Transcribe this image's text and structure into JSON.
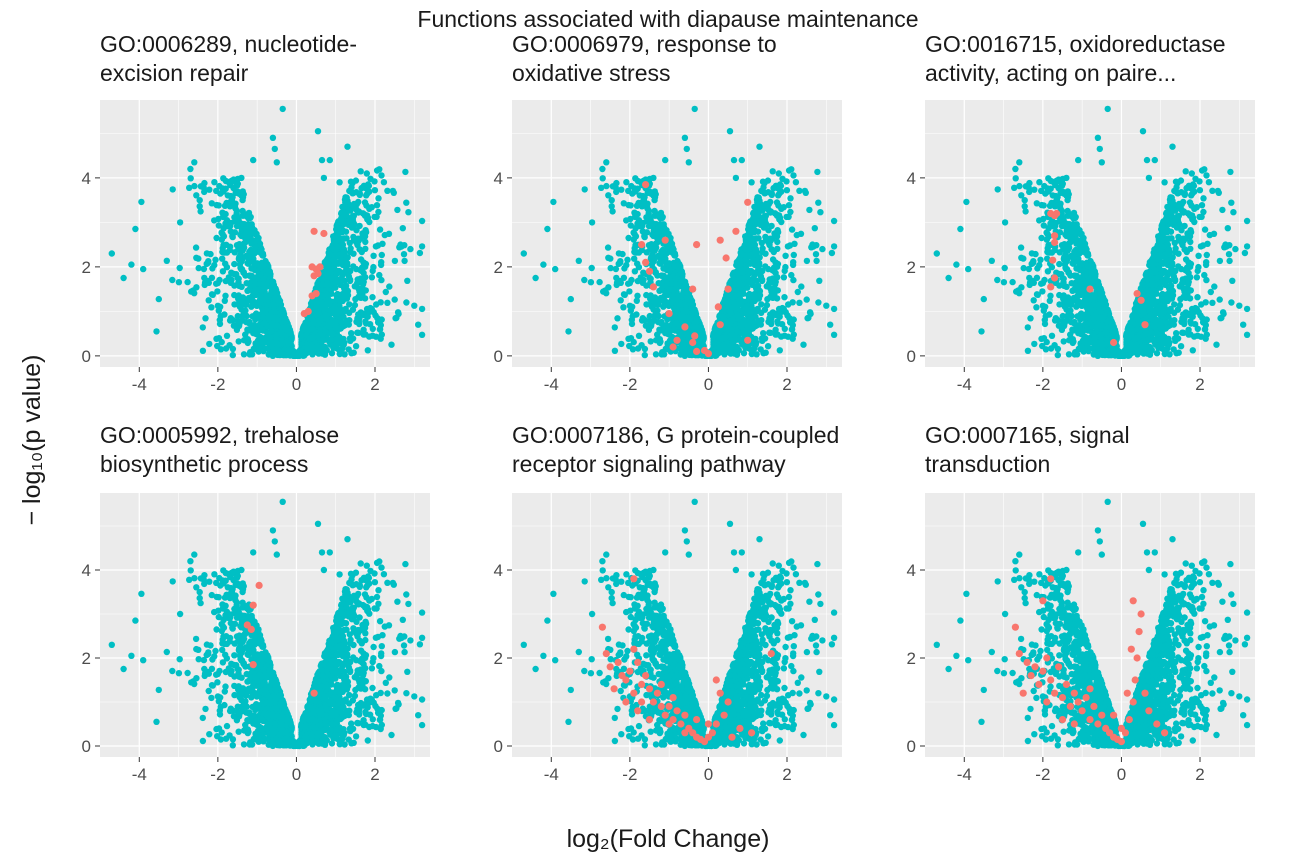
{
  "figure": {
    "title": "Functions associated with diapause maintenance",
    "xlabel": "log₂(Fold Change)",
    "ylabel": "− log₁₀(p value)",
    "colors": {
      "background": "#ebebeb",
      "grid": "#ffffff",
      "all_genes": "#00bfc4",
      "term_genes": "#f8766d"
    }
  },
  "chart_data": [
    {
      "type": "scatter",
      "title": "GO:0006289, nucleotide-\nexcision repair",
      "xlim": [
        -5.0,
        3.4
      ],
      "ylim": [
        -0.25,
        5.75
      ],
      "xticks": [
        -4,
        -2,
        0,
        2
      ],
      "yticks": [
        0,
        2,
        4
      ],
      "series": [
        {
          "color": "#f8766d",
          "points": [
            [
              0.45,
              2.8
            ],
            [
              0.7,
              2.75
            ],
            [
              0.4,
              2.0
            ],
            [
              0.5,
              1.95
            ],
            [
              0.6,
              2.0
            ],
            [
              0.55,
              1.85
            ],
            [
              0.45,
              1.8
            ],
            [
              0.5,
              1.4
            ],
            [
              0.4,
              1.35
            ],
            [
              0.3,
              1.0
            ],
            [
              0.2,
              0.95
            ]
          ]
        }
      ]
    },
    {
      "type": "scatter",
      "title": "GO:0006979, response to\noxidative stress",
      "xlim": [
        -5.0,
        3.4
      ],
      "ylim": [
        -0.25,
        5.75
      ],
      "xticks": [
        -4,
        -2,
        0,
        2
      ],
      "yticks": [
        0,
        2,
        4
      ],
      "series": [
        {
          "color": "#f8766d",
          "points": [
            [
              -1.6,
              3.85
            ],
            [
              1.0,
              3.45
            ],
            [
              0.7,
              2.8
            ],
            [
              0.3,
              2.6
            ],
            [
              -1.1,
              2.6
            ],
            [
              -1.7,
              2.5
            ],
            [
              0.45,
              2.2
            ],
            [
              -0.3,
              2.5
            ],
            [
              -1.6,
              2.1
            ],
            [
              -1.5,
              1.9
            ],
            [
              -1.4,
              1.55
            ],
            [
              -0.4,
              1.5
            ],
            [
              0.5,
              1.5
            ],
            [
              0.25,
              1.1
            ],
            [
              -1.0,
              0.95
            ],
            [
              -0.6,
              0.65
            ],
            [
              0.3,
              0.7
            ],
            [
              -0.35,
              0.45
            ],
            [
              -0.4,
              0.3
            ],
            [
              -0.8,
              0.35
            ],
            [
              -0.9,
              0.2
            ],
            [
              -0.3,
              0.1
            ],
            [
              -0.1,
              0.12
            ],
            [
              0.0,
              0.05
            ],
            [
              1.0,
              0.35
            ]
          ]
        }
      ]
    },
    {
      "type": "scatter",
      "title": "GO:0016715, oxidoreductase\nactivity, acting on paire...",
      "xlim": [
        -5.0,
        3.4
      ],
      "ylim": [
        -0.25,
        5.75
      ],
      "xticks": [
        -4,
        -2,
        0,
        2
      ],
      "yticks": [
        0,
        2,
        4
      ],
      "series": [
        {
          "color": "#f8766d",
          "points": [
            [
              -1.8,
              3.2
            ],
            [
              -1.7,
              3.15
            ],
            [
              -1.65,
              3.2
            ],
            [
              -1.7,
              2.7
            ],
            [
              -1.7,
              2.55
            ],
            [
              -1.75,
              2.15
            ],
            [
              -1.7,
              1.75
            ],
            [
              -1.8,
              1.55
            ],
            [
              -0.8,
              1.5
            ],
            [
              0.4,
              1.4
            ],
            [
              0.5,
              1.25
            ],
            [
              0.6,
              0.7
            ],
            [
              -0.2,
              0.3
            ]
          ]
        }
      ]
    },
    {
      "type": "scatter",
      "title": "GO:0005992, trehalose\nbiosynthetic process",
      "xlim": [
        -5.0,
        3.4
      ],
      "ylim": [
        -0.25,
        5.75
      ],
      "xticks": [
        -4,
        -2,
        0,
        2
      ],
      "yticks": [
        0,
        2,
        4
      ],
      "series": [
        {
          "color": "#f8766d",
          "points": [
            [
              -0.95,
              3.65
            ],
            [
              -1.1,
              3.2
            ],
            [
              -1.25,
              2.75
            ],
            [
              -1.15,
              2.65
            ],
            [
              -1.1,
              1.85
            ],
            [
              0.45,
              1.2
            ]
          ]
        }
      ]
    },
    {
      "type": "scatter",
      "title": "GO:0007186, G protein-coupled\nreceptor signaling pathway",
      "xlim": [
        -5.0,
        3.4
      ],
      "ylim": [
        -0.25,
        5.75
      ],
      "xticks": [
        -4,
        -2,
        0,
        2
      ],
      "yticks": [
        0,
        2,
        4
      ],
      "series": [
        {
          "color": "#f8766d",
          "points": [
            [
              -1.9,
              3.8
            ],
            [
              -2.7,
              2.7
            ],
            [
              -2.6,
              2.1
            ],
            [
              -2.5,
              1.8
            ],
            [
              -2.3,
              1.9
            ],
            [
              -2.2,
              1.6
            ],
            [
              -2.1,
              1.5
            ],
            [
              -2.0,
              1.7
            ],
            [
              -1.9,
              2.2
            ],
            [
              -1.8,
              1.9
            ],
            [
              -1.7,
              1.4
            ],
            [
              -1.6,
              1.6
            ],
            [
              -1.5,
              1.3
            ],
            [
              -1.4,
              1.0
            ],
            [
              -1.3,
              1.2
            ],
            [
              -1.2,
              0.9
            ],
            [
              -1.1,
              0.7
            ],
            [
              -1.0,
              0.9
            ],
            [
              -0.9,
              0.6
            ],
            [
              -0.8,
              0.8
            ],
            [
              -0.7,
              0.5
            ],
            [
              -0.6,
              0.7
            ],
            [
              -0.5,
              0.4
            ],
            [
              -0.4,
              0.3
            ],
            [
              -0.3,
              0.2
            ],
            [
              -0.2,
              0.15
            ],
            [
              -0.1,
              0.1
            ],
            [
              0.0,
              0.2
            ],
            [
              0.1,
              0.3
            ],
            [
              0.2,
              0.5
            ],
            [
              0.3,
              1.2
            ],
            [
              0.2,
              1.5
            ],
            [
              0.5,
              1.0
            ],
            [
              0.8,
              0.4
            ],
            [
              1.1,
              0.3
            ],
            [
              1.6,
              2.1
            ],
            [
              0.4,
              0.7
            ],
            [
              -1.9,
              1.2
            ],
            [
              -2.1,
              1.0
            ],
            [
              -1.2,
              1.4
            ],
            [
              -1.5,
              0.6
            ],
            [
              -0.9,
              1.1
            ],
            [
              -1.7,
              1.0
            ],
            [
              -0.6,
              0.3
            ],
            [
              0.6,
              0.2
            ],
            [
              -0.3,
              0.6
            ],
            [
              -2.4,
              1.3
            ],
            [
              -1.0,
              0.5
            ],
            [
              -1.8,
              0.8
            ],
            [
              0.0,
              0.5
            ]
          ]
        }
      ]
    },
    {
      "type": "scatter",
      "title": "GO:0007165, signal\ntransduction",
      "xlim": [
        -5.0,
        3.4
      ],
      "ylim": [
        -0.25,
        5.75
      ],
      "xticks": [
        -4,
        -2,
        0,
        2
      ],
      "yticks": [
        0,
        2,
        4
      ],
      "series": [
        {
          "color": "#f8766d",
          "points": [
            [
              -1.8,
              3.8
            ],
            [
              -2.0,
              3.3
            ],
            [
              -2.7,
              2.7
            ],
            [
              -2.6,
              2.1
            ],
            [
              -2.4,
              1.9
            ],
            [
              -2.3,
              1.6
            ],
            [
              -2.2,
              1.8
            ],
            [
              -2.1,
              1.4
            ],
            [
              -2.0,
              1.7
            ],
            [
              -1.9,
              2.0
            ],
            [
              -1.8,
              1.5
            ],
            [
              -1.7,
              1.2
            ],
            [
              -1.6,
              1.8
            ],
            [
              -1.5,
              1.1
            ],
            [
              -1.4,
              1.4
            ],
            [
              -1.3,
              0.9
            ],
            [
              -1.2,
              1.2
            ],
            [
              -1.1,
              1.0
            ],
            [
              -1.0,
              0.8
            ],
            [
              -0.9,
              1.1
            ],
            [
              -0.8,
              0.6
            ],
            [
              -0.7,
              0.9
            ],
            [
              -0.6,
              0.5
            ],
            [
              -0.5,
              0.7
            ],
            [
              -0.4,
              0.4
            ],
            [
              -0.3,
              0.3
            ],
            [
              -0.2,
              0.2
            ],
            [
              -0.1,
              0.15
            ],
            [
              0.0,
              0.1
            ],
            [
              0.1,
              0.3
            ],
            [
              0.2,
              0.6
            ],
            [
              0.3,
              1.0
            ],
            [
              0.35,
              1.5
            ],
            [
              0.4,
              2.0
            ],
            [
              0.45,
              2.6
            ],
            [
              0.5,
              3.0
            ],
            [
              0.3,
              3.3
            ],
            [
              0.25,
              2.2
            ],
            [
              0.15,
              1.2
            ],
            [
              0.6,
              1.2
            ],
            [
              0.7,
              0.8
            ],
            [
              0.9,
              0.5
            ],
            [
              1.1,
              0.3
            ],
            [
              -2.5,
              1.2
            ],
            [
              -1.9,
              1.0
            ],
            [
              -1.5,
              0.6
            ],
            [
              -1.2,
              0.5
            ],
            [
              -0.8,
              1.3
            ],
            [
              0.0,
              0.4
            ],
            [
              -0.2,
              0.7
            ]
          ]
        }
      ]
    }
  ]
}
